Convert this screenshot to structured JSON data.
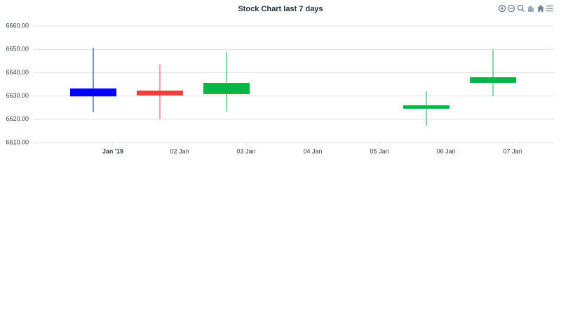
{
  "chart_data": {
    "type": "candlestick",
    "title": "Stock Chart last 7 days",
    "x": [
      "2019-01-01",
      "2019-01-02",
      "2019-01-03",
      "2019-01-06",
      "2019-01-07"
    ],
    "series": [
      {
        "open": [
          6629.8,
          6632.3,
          6630.8,
          6624.5,
          6635.6
        ],
        "high": [
          6650.5,
          6643.4,
          6648.9,
          6632.0,
          6650.0
        ],
        "low": [
          6623.0,
          6620.0,
          6623.3,
          6617.0,
          6629.9
        ],
        "close": [
          6633.2,
          6630.2,
          6635.6,
          6626.0,
          6638.0
        ],
        "colors": [
          "#0000ff",
          "#ef403c",
          "#00b746",
          "#00b746",
          "#00b746"
        ]
      }
    ],
    "ylim": [
      6610,
      6660
    ],
    "yticks": [
      {
        "value": 6610,
        "label": "6610.00"
      },
      {
        "value": 6620,
        "label": "6620.00"
      },
      {
        "value": 6630,
        "label": "6630.00"
      },
      {
        "value": 6640,
        "label": "6640.00"
      },
      {
        "value": 6650,
        "label": "6650.00"
      },
      {
        "value": 6660,
        "label": "6660.00"
      }
    ],
    "xticks": [
      {
        "value": "2019-01-01",
        "label": "Jan '19"
      },
      {
        "value": "2019-01-02",
        "label": "02 Jan"
      },
      {
        "value": "2019-01-03",
        "label": "03 Jan"
      },
      {
        "value": "2019-01-04",
        "label": "04 Jan"
      },
      {
        "value": "2019-01-05",
        "label": "05 Jan"
      },
      {
        "value": "2019-01-06",
        "label": "06 Jan"
      },
      {
        "value": "2019-01-07",
        "label": "07 Jan"
      }
    ],
    "grid": true
  }
}
